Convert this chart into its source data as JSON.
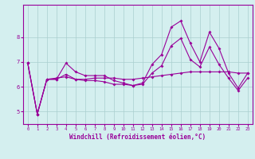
{
  "xlabel": "Windchill (Refroidissement éolien,°C)",
  "background_color": "#d4efef",
  "line_color": "#990099",
  "xlim": [
    -0.5,
    23.5
  ],
  "ylim": [
    4.5,
    9.3
  ],
  "yticks": [
    5,
    6,
    7,
    8
  ],
  "xticks": [
    0,
    1,
    2,
    3,
    4,
    5,
    6,
    7,
    8,
    9,
    10,
    11,
    12,
    13,
    14,
    15,
    16,
    17,
    18,
    19,
    20,
    21,
    22,
    23
  ],
  "series1": [
    6.95,
    4.9,
    6.3,
    6.3,
    6.95,
    6.6,
    6.45,
    6.45,
    6.45,
    6.25,
    6.15,
    6.05,
    6.15,
    6.9,
    7.3,
    8.4,
    8.65,
    7.75,
    7.0,
    8.2,
    7.55,
    6.55,
    5.95,
    6.55
  ],
  "series2": [
    6.95,
    4.9,
    6.3,
    6.35,
    6.4,
    6.3,
    6.3,
    6.35,
    6.35,
    6.35,
    6.3,
    6.3,
    6.35,
    6.4,
    6.45,
    6.5,
    6.55,
    6.6,
    6.6,
    6.6,
    6.6,
    6.6,
    6.55,
    6.55
  ],
  "series3": [
    6.95,
    4.9,
    6.3,
    6.3,
    6.5,
    6.3,
    6.25,
    6.25,
    6.2,
    6.1,
    6.1,
    6.05,
    6.1,
    6.55,
    6.85,
    7.65,
    7.95,
    7.1,
    6.8,
    7.6,
    6.9,
    6.35,
    5.85,
    6.35
  ]
}
